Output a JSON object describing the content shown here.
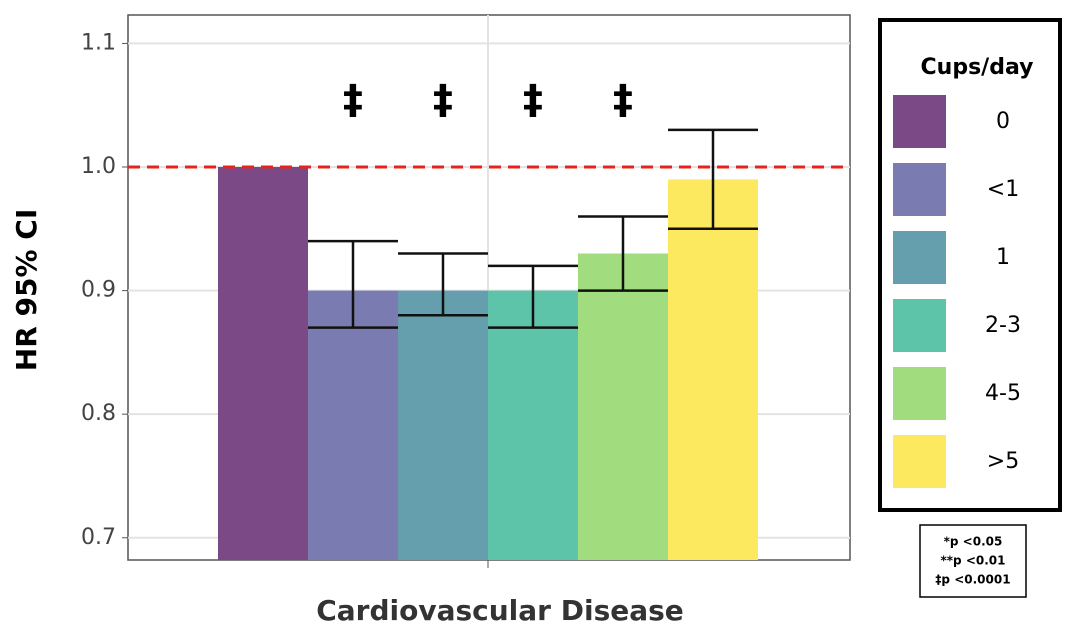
{
  "chart_data": {
    "type": "bar",
    "y_label": "HR 95% CI",
    "x_label": "Cardiovascular Disease",
    "legend_title": "Cups/day",
    "categories": [
      "0",
      "<1",
      "1",
      "2-3",
      "4-5",
      ">5"
    ],
    "colors": [
      "#7b4a86",
      "#7a7bb0",
      "#659fad",
      "#5ec4a9",
      "#a1dd7e",
      "#fde95f"
    ],
    "values": [
      1.0,
      0.9,
      0.9,
      0.9,
      0.93,
      0.99
    ],
    "ci_lower": [
      null,
      0.87,
      0.88,
      0.87,
      0.9,
      0.95
    ],
    "ci_upper": [
      null,
      0.94,
      0.93,
      0.92,
      0.96,
      1.03
    ],
    "significance_labels": [
      null,
      "‡",
      "‡",
      "‡",
      "‡",
      null
    ],
    "reference_line": 1.0,
    "ylim": [
      0.682,
      1.123
    ],
    "yticks": [
      0.7,
      0.8,
      0.9,
      {
        "value": 1.0,
        "label": "1.0"
      },
      1.1
    ],
    "grid": true,
    "footnotes": [
      "*p <0.05",
      "**p <0.01",
      "‡p <0.0001"
    ]
  }
}
